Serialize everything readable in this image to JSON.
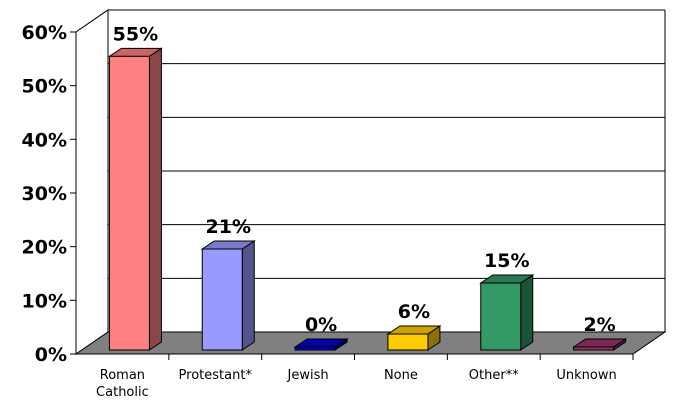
{
  "chart_data": {
    "type": "bar",
    "categories": [
      [
        "Roman",
        "Catholic"
      ],
      [
        "Protestant*"
      ],
      [
        "Jewish"
      ],
      [
        "None"
      ],
      [
        "Other**"
      ],
      [
        "Unknown"
      ]
    ],
    "values": [
      55,
      21,
      0,
      6,
      15,
      2
    ],
    "data_labels": [
      "55%",
      "21%",
      "0%",
      "6%",
      "15%",
      "2%"
    ],
    "colors": [
      "#ff8080",
      "#9999ff",
      "#0000cc",
      "#ffcc00",
      "#339966",
      "#993366"
    ],
    "y_ticks": [
      {
        "value": 0,
        "label": "0%"
      },
      {
        "value": 10,
        "label": "10%"
      },
      {
        "value": 20,
        "label": "20%"
      },
      {
        "value": 30,
        "label": "30%"
      },
      {
        "value": 40,
        "label": "40%"
      },
      {
        "value": 50,
        "label": "50%"
      },
      {
        "value": 60,
        "label": "60%"
      }
    ],
    "ylim": [
      0,
      60
    ],
    "style": "3d-column",
    "grid": true,
    "legend": "none"
  }
}
